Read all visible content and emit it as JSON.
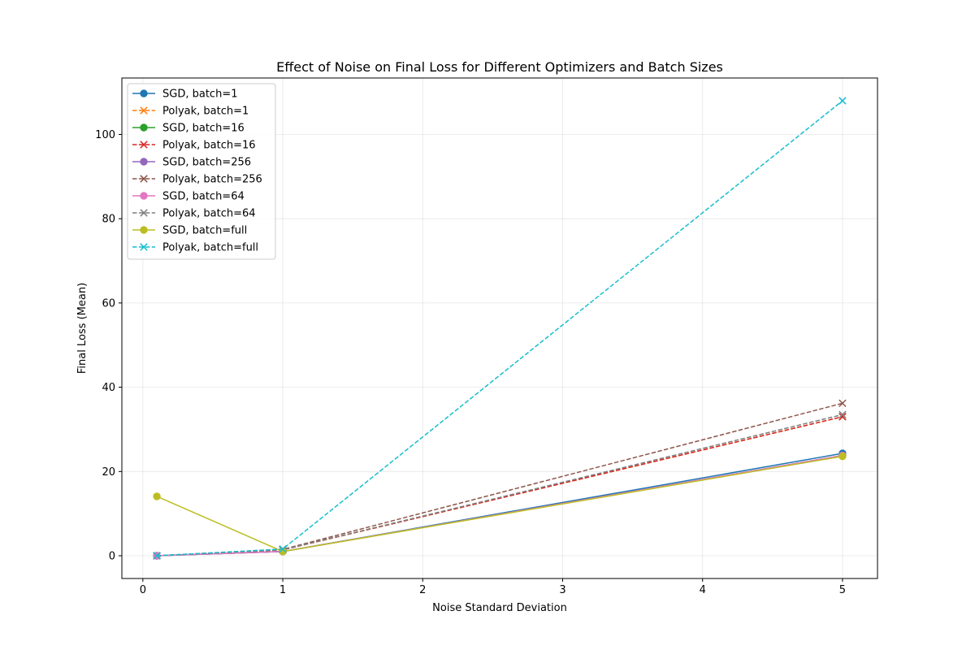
{
  "chart_data": {
    "type": "line",
    "title": "Effect of Noise on Final Loss for Different Optimizers and Batch Sizes",
    "xlabel": "Noise Standard Deviation",
    "ylabel": "Final Loss (Mean)",
    "xlim": [
      -0.15,
      5.25
    ],
    "ylim": [
      -5.4,
      113.4
    ],
    "xticks": [
      0,
      1,
      2,
      3,
      4,
      5
    ],
    "yticks": [
      0,
      20,
      40,
      60,
      80,
      100
    ],
    "grid": true,
    "legend_position": "upper-left",
    "x": [
      0.1,
      1,
      5
    ],
    "series": [
      {
        "name": "SGD, batch=1",
        "values": [
          0.0,
          1.0,
          24.3
        ],
        "color": "#1f77b4",
        "style": "solid",
        "marker": "circle"
      },
      {
        "name": "Polyak, batch=1",
        "values": [
          0.0,
          1.4,
          33.0
        ],
        "color": "#ff7f0e",
        "style": "dashed",
        "marker": "x"
      },
      {
        "name": "SGD, batch=16",
        "values": [
          0.0,
          1.0,
          23.8
        ],
        "color": "#2ca02c",
        "style": "solid",
        "marker": "circle"
      },
      {
        "name": "Polyak, batch=16",
        "values": [
          0.0,
          1.4,
          33.0
        ],
        "color": "#d62728",
        "style": "dashed",
        "marker": "x"
      },
      {
        "name": "SGD, batch=256",
        "values": [
          0.0,
          1.0,
          23.8
        ],
        "color": "#9467bd",
        "style": "solid",
        "marker": "circle"
      },
      {
        "name": "Polyak, batch=256",
        "values": [
          0.0,
          1.5,
          36.2
        ],
        "color": "#8c564b",
        "style": "dashed",
        "marker": "x"
      },
      {
        "name": "SGD, batch=64",
        "values": [
          0.0,
          1.0,
          23.8
        ],
        "color": "#e377c2",
        "style": "solid",
        "marker": "circle"
      },
      {
        "name": "Polyak, batch=64",
        "values": [
          0.0,
          1.4,
          33.5
        ],
        "color": "#7f7f7f",
        "style": "dashed",
        "marker": "x"
      },
      {
        "name": "SGD, batch=full",
        "values": [
          14.1,
          1.0,
          23.6
        ],
        "color": "#bcbd22",
        "style": "solid",
        "marker": "circle"
      },
      {
        "name": "Polyak, batch=full",
        "values": [
          0.0,
          1.6,
          108.0
        ],
        "color": "#17becf",
        "style": "dashed",
        "marker": "x"
      }
    ]
  }
}
